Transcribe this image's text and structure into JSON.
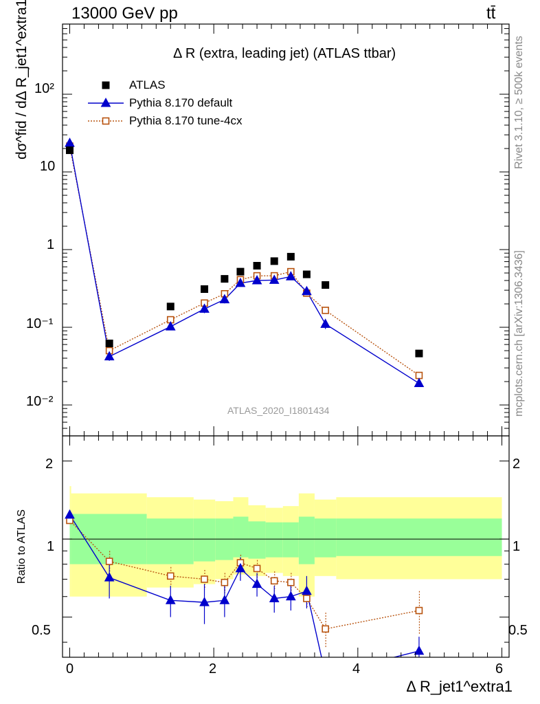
{
  "header": {
    "energy_label": "13000 GeV pp",
    "process_label": "tt̄"
  },
  "side_text": {
    "rivet": "Rivet 3.1.10, ≥ 500k events",
    "mcplots": "mcplots.cern.ch [arXiv:1306.3436]"
  },
  "main_panel": {
    "title": "Δ R (extra, leading jet) (ATLAS ttbar)",
    "ylabel_expr": "dσ^fid / dΔ R_jet1^extra1 [pb]",
    "watermark": "ATLAS_2020_I1801434",
    "y_tick_labels": [
      "10⁻²",
      "10⁻¹",
      "1",
      "10",
      "10²"
    ]
  },
  "ratio_panel": {
    "ylabel": "Ratio to ATLAS",
    "y_tick_labels": [
      "0.5",
      "1",
      "2"
    ]
  },
  "x_axis": {
    "label": "Δ R_jet1^extra1",
    "tick_labels": [
      "0",
      "2",
      "4",
      "6"
    ]
  },
  "colors": {
    "atlas": "#000000",
    "default": "#0000cc",
    "tune": "#b8530f",
    "band_inner": "#99ff99",
    "band_outer": "#ffff99"
  },
  "chart_data": {
    "type": "scatter",
    "x_range": [
      -0.1,
      6.1
    ],
    "main": {
      "y_scale": "log",
      "ylim": [
        0.004,
        800
      ],
      "legend_position": "top-left",
      "series": [
        {
          "name": "ATLAS",
          "marker": "square",
          "x": [
            0.0,
            0.55,
            1.4,
            1.87,
            2.15,
            2.37,
            2.6,
            2.84,
            3.07,
            3.29,
            3.55,
            4.85
          ],
          "y": [
            19.0,
            0.062,
            0.185,
            0.31,
            0.42,
            0.52,
            0.62,
            0.71,
            0.81,
            0.48,
            0.35,
            0.046
          ]
        },
        {
          "name": "Pythia 8.170 default",
          "marker": "triangle",
          "x": [
            0.0,
            0.55,
            1.4,
            1.87,
            2.15,
            2.37,
            2.6,
            2.84,
            3.07,
            3.29,
            3.55,
            4.85
          ],
          "y": [
            23.5,
            0.042,
            0.102,
            0.172,
            0.228,
            0.37,
            0.4,
            0.405,
            0.45,
            0.29,
            0.11,
            0.019
          ],
          "yerr": [
            0.8,
            0.005,
            0.01,
            0.02,
            0.025,
            0.03,
            0.035,
            0.035,
            0.04,
            0.035,
            0.015,
            0.002
          ]
        },
        {
          "name": "Pythia 8.170 tune-4cx",
          "marker": "open-square",
          "x": [
            0.0,
            0.55,
            1.4,
            1.87,
            2.15,
            2.37,
            2.6,
            2.84,
            3.07,
            3.29,
            3.55,
            4.85
          ],
          "y": [
            21.5,
            0.05,
            0.125,
            0.205,
            0.27,
            0.41,
            0.46,
            0.46,
            0.52,
            0.275,
            0.165,
            0.024
          ]
        }
      ]
    },
    "ratio": {
      "y_scale": "log",
      "ylim": [
        0.35,
        2.5
      ],
      "bins": [
        [
          0,
          0.02
        ],
        [
          0.02,
          1.07
        ],
        [
          1.07,
          1.72
        ],
        [
          1.72,
          2.02
        ],
        [
          2.02,
          2.27
        ],
        [
          2.27,
          2.48
        ],
        [
          2.48,
          2.72
        ],
        [
          2.72,
          2.96
        ],
        [
          2.96,
          3.18
        ],
        [
          3.18,
          3.4
        ],
        [
          3.4,
          3.7
        ],
        [
          3.7,
          6.0
        ]
      ],
      "band_outer": [
        [
          0.6,
          1.6
        ],
        [
          0.6,
          1.5
        ],
        [
          0.65,
          1.45
        ],
        [
          0.67,
          1.42
        ],
        [
          0.7,
          1.4
        ],
        [
          0.73,
          1.45
        ],
        [
          0.72,
          1.35
        ],
        [
          0.74,
          1.32
        ],
        [
          0.72,
          1.34
        ],
        [
          0.6,
          1.5
        ],
        [
          0.72,
          1.42
        ],
        [
          0.7,
          1.45
        ]
      ],
      "band_inner": [
        [
          0.8,
          1.25
        ],
        [
          0.8,
          1.25
        ],
        [
          0.8,
          1.2
        ],
        [
          0.82,
          1.2
        ],
        [
          0.83,
          1.2
        ],
        [
          0.85,
          1.22
        ],
        [
          0.84,
          1.17
        ],
        [
          0.85,
          1.16
        ],
        [
          0.85,
          1.16
        ],
        [
          0.8,
          1.22
        ],
        [
          0.85,
          1.2
        ],
        [
          0.86,
          1.2
        ]
      ],
      "series": [
        {
          "name": "Pythia 8.170 default",
          "marker": "triangle",
          "x": [
            0.0,
            0.55,
            1.4,
            1.87,
            2.15,
            2.37,
            2.6,
            2.84,
            3.07,
            3.29,
            3.55,
            4.85
          ],
          "y": [
            1.24,
            0.71,
            0.58,
            0.57,
            0.58,
            0.77,
            0.67,
            0.59,
            0.6,
            0.63,
            0.3,
            0.37
          ],
          "yerr": [
            0.03,
            0.12,
            0.08,
            0.1,
            0.08,
            0.08,
            0.07,
            0.07,
            0.07,
            0.09,
            0.05,
            0.05
          ]
        },
        {
          "name": "Pythia 8.170 tune-4cx",
          "marker": "open-square",
          "x": [
            0.0,
            0.55,
            1.4,
            1.87,
            2.15,
            2.37,
            2.6,
            2.84,
            3.07,
            3.29,
            3.55,
            4.85
          ],
          "y": [
            1.18,
            0.82,
            0.72,
            0.7,
            0.68,
            0.81,
            0.77,
            0.69,
            0.68,
            0.59,
            0.45,
            0.53
          ],
          "yerr": [
            0.03,
            0.08,
            0.06,
            0.06,
            0.06,
            0.06,
            0.06,
            0.06,
            0.06,
            0.05,
            0.07,
            0.1
          ]
        }
      ]
    }
  }
}
